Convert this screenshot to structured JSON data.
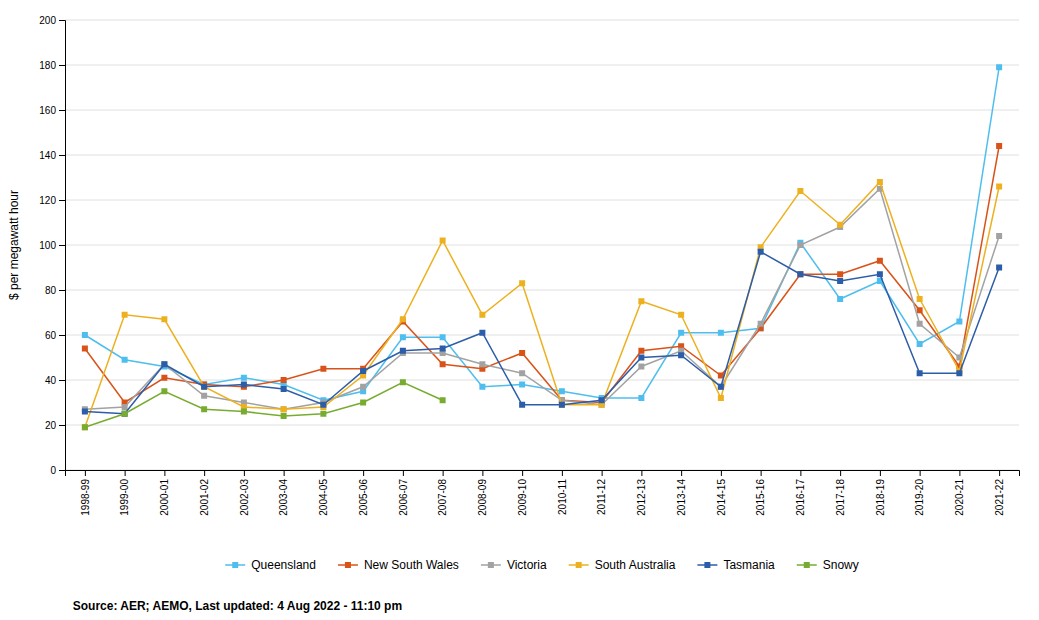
{
  "chart_data": {
    "type": "line",
    "categories": [
      "1998-99",
      "1999-00",
      "2000-01",
      "2001-02",
      "2002-03",
      "2003-04",
      "2004-05",
      "2005-06",
      "2006-07",
      "2007-08",
      "2008-09",
      "2009-10",
      "2010-11",
      "2011-12",
      "2012-13",
      "2013-14",
      "2014-15",
      "2015-16",
      "2016-17",
      "2017-18",
      "2018-19",
      "2019-20",
      "2020-21",
      "2021-22"
    ],
    "series": [
      {
        "name": "Queensland",
        "color": "#4DBEEE",
        "values": [
          60,
          49,
          46,
          38,
          41,
          38,
          31,
          35,
          59,
          59,
          37,
          38,
          35,
          32,
          32,
          61,
          61,
          63,
          101,
          76,
          84,
          56,
          66,
          179
        ]
      },
      {
        "name": "New South Wales",
        "color": "#D95319",
        "values": [
          54,
          30,
          41,
          38,
          37,
          40,
          45,
          45,
          66,
          47,
          45,
          52,
          31,
          30,
          53,
          55,
          42,
          63,
          87,
          87,
          93,
          71,
          46,
          144
        ]
      },
      {
        "name": "Victoria",
        "color": "#A2A2A2",
        "values": [
          27,
          28,
          47,
          33,
          30,
          27,
          30,
          37,
          52,
          52,
          47,
          43,
          31,
          29,
          46,
          53,
          37,
          65,
          100,
          108,
          125,
          65,
          50,
          104
        ]
      },
      {
        "name": "South Australia",
        "color": "#EDB120",
        "values": [
          19,
          69,
          67,
          37,
          28,
          27,
          28,
          42,
          67,
          102,
          69,
          83,
          29,
          29,
          75,
          69,
          32,
          99,
          124,
          109,
          128,
          76,
          44,
          126
        ]
      },
      {
        "name": "Tasmania",
        "color": "#2C5DA8",
        "values": [
          26,
          25,
          47,
          37,
          38,
          36,
          29,
          44,
          53,
          54,
          61,
          29,
          29,
          31,
          50,
          51,
          37,
          97,
          87,
          84,
          87,
          43,
          43,
          90
        ]
      },
      {
        "name": "Snowy",
        "color": "#77AC30",
        "values": [
          19,
          25,
          35,
          27,
          26,
          24,
          25,
          30,
          39,
          31,
          null,
          null,
          null,
          null,
          null,
          null,
          null,
          null,
          null,
          null,
          null,
          null,
          null,
          null
        ]
      }
    ],
    "ylabel": "$ per megawatt hour",
    "ylim": [
      0,
      200
    ],
    "yticks": [
      0,
      20,
      40,
      60,
      80,
      100,
      120,
      140,
      160,
      180,
      200
    ],
    "grid": true,
    "legend": "bottom",
    "marker": "square",
    "annotations": [
      "Source: AER; AEMO, Last updated: 4 Aug 2022 - 11:10 pm"
    ]
  }
}
